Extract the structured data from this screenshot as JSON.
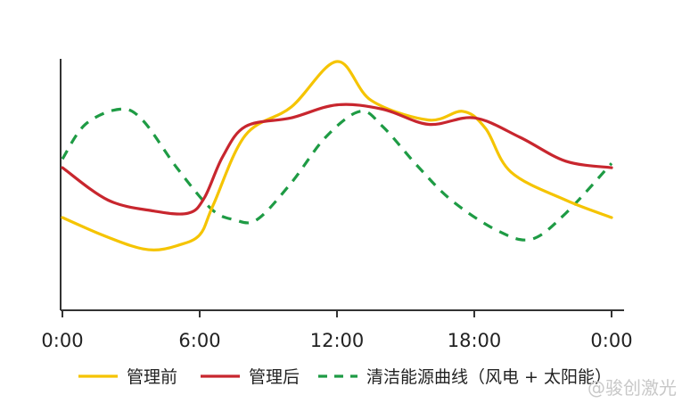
{
  "chart_data": {
    "type": "line",
    "x_ticks": [
      "0:00",
      "6:00",
      "12:00",
      "18:00",
      "0:00"
    ],
    "x": [
      0,
      1.5,
      3,
      4,
      6,
      6.5,
      8,
      9,
      10.5,
      12,
      13.5,
      16,
      18,
      20,
      22,
      24
    ],
    "xlim": [
      0,
      24
    ],
    "ylim": [
      0,
      100
    ],
    "series": [
      {
        "name": "管理前",
        "color": "#f5c400",
        "dash": "solid",
        "x": [
          0,
          1.5,
          3,
          4,
          5,
          6,
          6.6,
          8,
          10,
          12,
          13.5,
          16,
          17.5,
          18.5,
          19.6,
          22,
          24
        ],
        "values": [
          28,
          21,
          15,
          13,
          15,
          20,
          34,
          66,
          79,
          100,
          82,
          73,
          77,
          69,
          49,
          36,
          28
        ]
      },
      {
        "name": "管理后",
        "color": "#c8262e",
        "dash": "solid",
        "x": [
          0,
          2,
          4,
          5.5,
          6.2,
          7,
          8,
          10,
          12,
          14,
          16,
          18,
          20,
          22,
          24
        ],
        "values": [
          51,
          36,
          31,
          30,
          37,
          56,
          70,
          74,
          80,
          78,
          71,
          74,
          65,
          54,
          51
        ]
      },
      {
        "name": "清洁能源曲线（风电 + 太阳能）",
        "color": "#1e9b44",
        "dash": "dashed",
        "x": [
          0,
          1,
          2.5,
          3.5,
          5,
          6.5,
          7.5,
          8.5,
          10,
          11.5,
          13,
          14,
          15.5,
          17,
          19,
          20.5,
          22,
          24
        ],
        "values": [
          55,
          71,
          78,
          73,
          51,
          32,
          27,
          27,
          44,
          65,
          77,
          70,
          52,
          36,
          22,
          18,
          30,
          53
        ]
      }
    ],
    "legend_position": "bottom",
    "grid": false
  },
  "watermark": "@骏创激光"
}
